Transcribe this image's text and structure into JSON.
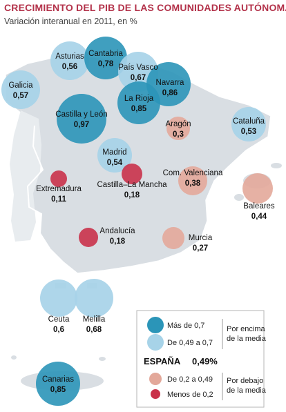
{
  "title": "CRECIMIENTO DEL PIB DE LAS COMUNIDADES AUTÓNOMAS",
  "subtitle": "Variación interanual en 2011, en %",
  "colors": {
    "high": "#2b95b8",
    "mid": "#a7d3e8",
    "low_mid": "#e3a89a",
    "low": "#c9324a",
    "land": "#d9dee3"
  },
  "chart_data": {
    "type": "bubble-map",
    "title": "CRECIMIENTO DEL PIB DE LAS COMUNIDADES AUTÓNOMAS",
    "subtitle": "Variación interanual en 2011, en %",
    "unit": "%",
    "points": [
      {
        "name": "Asturias",
        "value": "0,56",
        "class": "mid"
      },
      {
        "name": "Cantabria",
        "value": "0,78",
        "class": "high"
      },
      {
        "name": "País Vasco",
        "value": "0,67",
        "class": "mid"
      },
      {
        "name": "Navarra",
        "value": "0,86",
        "class": "high"
      },
      {
        "name": "Galicia",
        "value": "0,57",
        "class": "mid"
      },
      {
        "name": "La Rioja",
        "value": "0,85",
        "class": "high"
      },
      {
        "name": "Castilla y León",
        "value": "0,97",
        "class": "high"
      },
      {
        "name": "Aragón",
        "value": "0,3",
        "class": "low_mid"
      },
      {
        "name": "Cataluña",
        "value": "0,53",
        "class": "mid"
      },
      {
        "name": "Madrid",
        "value": "0,54",
        "class": "mid"
      },
      {
        "name": "Extremadura",
        "value": "0,11",
        "class": "low"
      },
      {
        "name": "Castilla–La Mancha",
        "value": "0,18",
        "class": "low"
      },
      {
        "name": "Com. Valenciana",
        "value": "0,38",
        "class": "low_mid"
      },
      {
        "name": "Baleares",
        "value": "0,44",
        "class": "low_mid"
      },
      {
        "name": "Andalucía",
        "value": "0,18",
        "class": "low"
      },
      {
        "name": "Murcia",
        "value": "0,27",
        "class": "low_mid"
      },
      {
        "name": "Ceuta",
        "value": "0,6",
        "class": "mid"
      },
      {
        "name": "Melilla",
        "value": "0,68",
        "class": "mid"
      },
      {
        "name": "Canarias",
        "value": "0,85",
        "class": "high"
      }
    ]
  },
  "legend": {
    "items": [
      {
        "label": "Más de 0,7",
        "class": "high"
      },
      {
        "label": "De 0,49 a 0,7",
        "class": "mid"
      },
      {
        "label": "De 0,2 a 0,49",
        "class": "low_mid"
      },
      {
        "label": "Menos de 0,2",
        "class": "low"
      }
    ],
    "above_line1": "Por encima",
    "above_line2": "de la media",
    "below_line1": "Por debajo",
    "below_line2": "de la media",
    "total_label": "ESPAÑA",
    "total_value": "0,49%"
  }
}
